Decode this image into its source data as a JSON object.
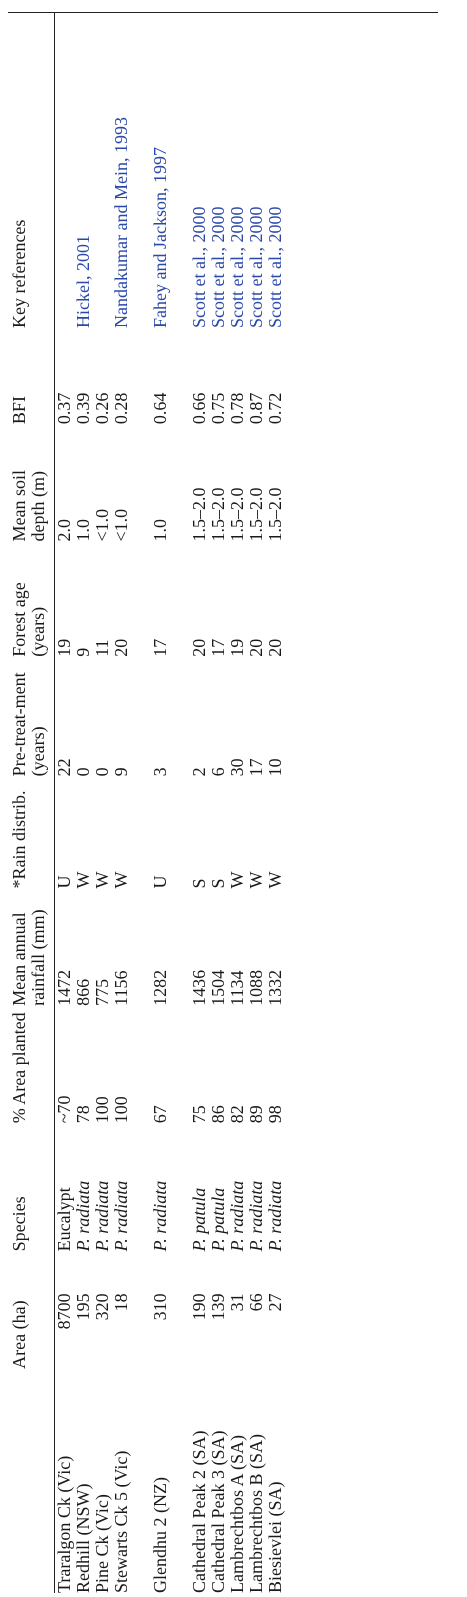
{
  "table": {
    "headers": {
      "catchment": "",
      "area": "Area (ha)",
      "species": "Species",
      "area_planted": "% Area planted",
      "rainfall": "Mean annual rainfall (mm)",
      "rain_distrib": "*Rain distrib.",
      "pretreatment": "Pre-treat-ment (years)",
      "forest_age": "Forest age (years)",
      "soil_depth": "Mean soil depth (m)",
      "bfi": "BFI",
      "refs": "Key references"
    },
    "rows": [
      {
        "catchment": "Traralgon Ck (Vic)",
        "area": "8700",
        "species": "Eucalypt",
        "area_planted": "~70",
        "rainfall": "1472",
        "rain_distrib": "U",
        "pretreatment": "22",
        "forest_age": "19",
        "soil_depth": "2.0",
        "bfi": "0.37",
        "refs": ""
      },
      {
        "catchment": "Redhill (NSW)",
        "area": "195",
        "species": "P. radiata",
        "area_planted": "78",
        "rainfall": "866",
        "rain_distrib": "W",
        "pretreatment": "0",
        "forest_age": "9",
        "soil_depth": "1.0",
        "bfi": "0.39",
        "refs": "Hickel, 2001"
      },
      {
        "catchment": "Pine Ck (Vic)",
        "area": "320",
        "species": "P. radiata",
        "area_planted": "100",
        "rainfall": "775",
        "rain_distrib": "W",
        "pretreatment": "0",
        "forest_age": "11",
        "soil_depth": "<1.0",
        "bfi": "0.26",
        "refs": ""
      },
      {
        "catchment": "Stewarts Ck 5 (Vic)",
        "area": "18",
        "species": "P. radiata",
        "area_planted": "100",
        "rainfall": "1156",
        "rain_distrib": "W",
        "pretreatment": "9",
        "forest_age": "20",
        "soil_depth": "<1.0",
        "bfi": "0.28",
        "refs": "Nandakumar and Mein, 1993"
      },
      {
        "catchment": "Glendhu 2 (NZ)",
        "area": "310",
        "species": "P. radiata",
        "area_planted": "67",
        "rainfall": "1282",
        "rain_distrib": "U",
        "pretreatment": "3",
        "forest_age": "17",
        "soil_depth": "1.0",
        "bfi": "0.64",
        "refs": "Fahey and Jackson, 1997"
      },
      {
        "catchment": "Cathedral Peak 2 (SA)",
        "area": "190",
        "species": "P. patula",
        "area_planted": "75",
        "rainfall": "1436",
        "rain_distrib": "S",
        "pretreatment": "2",
        "forest_age": "20",
        "soil_depth": "1.5–2.0",
        "bfi": "0.66",
        "refs": "Scott et al., 2000"
      },
      {
        "catchment": "Cathedral Peak 3 (SA)",
        "area": "139",
        "species": "P. patula",
        "area_planted": "86",
        "rainfall": "1504",
        "rain_distrib": "S",
        "pretreatment": "6",
        "forest_age": "17",
        "soil_depth": "1.5–2.0",
        "bfi": "0.75",
        "refs": "Scott et al., 2000"
      },
      {
        "catchment": "Lambrechtbos A (SA)",
        "area": "31",
        "species": "P. radiata",
        "area_planted": "82",
        "rainfall": "1134",
        "rain_distrib": "W",
        "pretreatment": "30",
        "forest_age": "19",
        "soil_depth": "1.5–2.0",
        "bfi": "0.78",
        "refs": "Scott et al., 2000"
      },
      {
        "catchment": "Lambrechtbos B (SA)",
        "area": "66",
        "species": "P. radiata",
        "area_planted": "89",
        "rainfall": "1088",
        "rain_distrib": "W",
        "pretreatment": "17",
        "forest_age": "20",
        "soil_depth": "1.5–2.0",
        "bfi": "0.87",
        "refs": "Scott et al., 2000"
      },
      {
        "catchment": "Biesievlei (SA)",
        "area": "27",
        "species": "P. radiata",
        "area_planted": "98",
        "rainfall": "1332",
        "rain_distrib": "W",
        "pretreatment": "10",
        "forest_age": "20",
        "soil_depth": "1.5–2.0",
        "bfi": "0.72",
        "refs": "Scott et al., 2000"
      }
    ]
  }
}
